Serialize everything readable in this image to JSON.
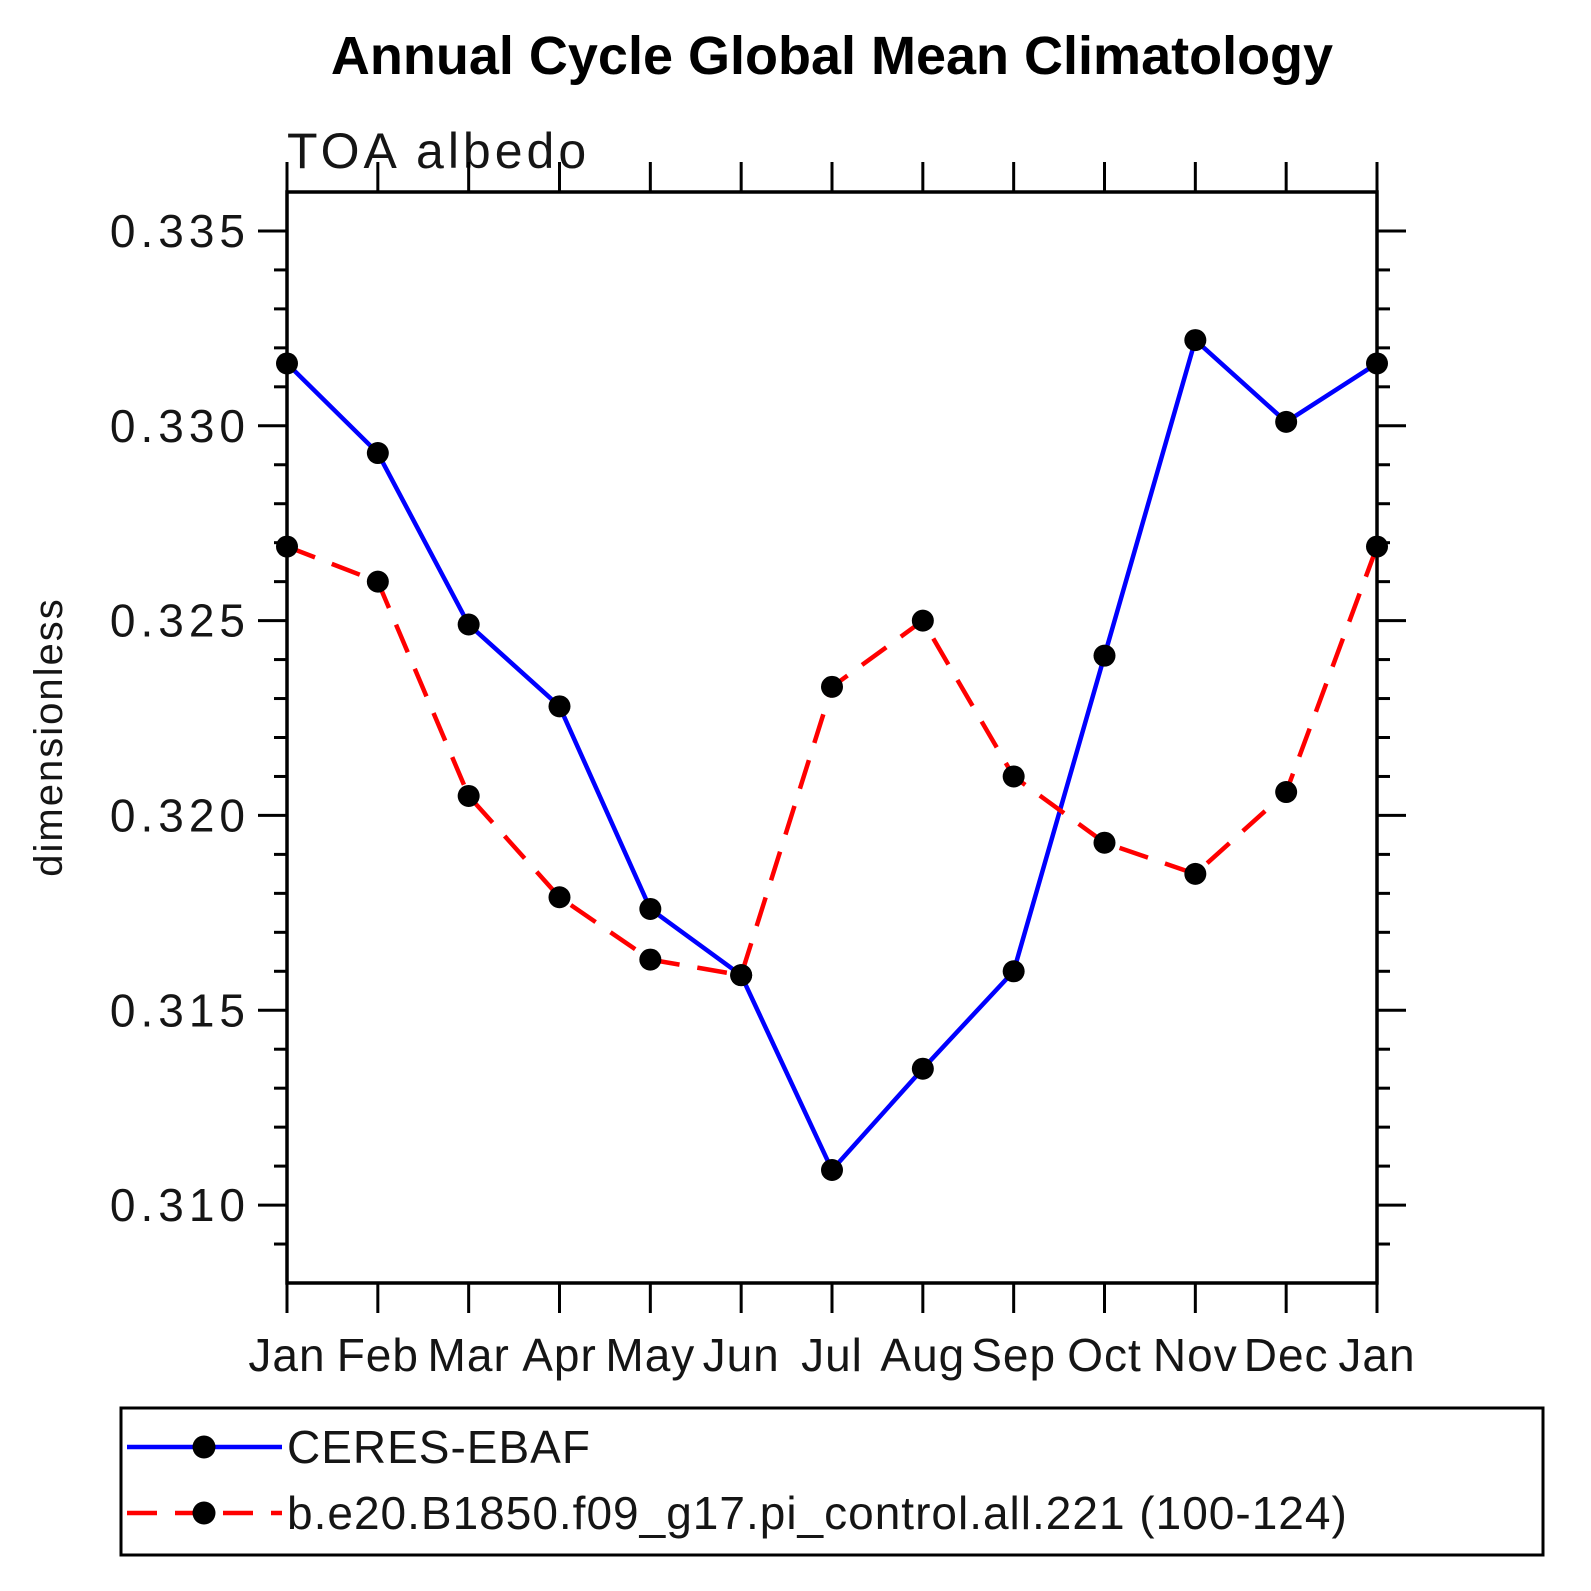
{
  "title": "Annual Cycle Global Mean Climatology",
  "chart_data": {
    "type": "line",
    "title": "Annual Cycle Global Mean Climatology",
    "subtitle": "TOA albedo",
    "ylabel": "dimensionless",
    "xlabel": "",
    "grid": false,
    "legend_position": "bottom",
    "categories": [
      "Jan",
      "Feb",
      "Mar",
      "Apr",
      "May",
      "Jun",
      "Jul",
      "Aug",
      "Sep",
      "Oct",
      "Nov",
      "Dec",
      "Jan"
    ],
    "ylim": [
      0.308,
      0.336
    ],
    "y_major_ticks": [
      0.31,
      0.315,
      0.32,
      0.325,
      0.33,
      0.335
    ],
    "y_tick_labels": [
      "0.310",
      "0.315",
      "0.320",
      "0.325",
      "0.330",
      "0.335"
    ],
    "y_minor_step": 0.001,
    "marker_color": "#000000",
    "axis_color": "#000000",
    "series": [
      {
        "name": "CERES-EBAF",
        "color": "#0000ff",
        "style": "solid",
        "values": [
          0.3316,
          0.3293,
          0.3249,
          0.3228,
          0.3176,
          0.3159,
          0.3109,
          0.3135,
          0.316,
          0.3241,
          0.3322,
          0.3301,
          0.3316
        ]
      },
      {
        "name": "b.e20.B1850.f09_g17.pi_control.all.221 (100-124)",
        "color": "#ff0000",
        "style": "dashed",
        "values": [
          0.3269,
          0.326,
          0.3205,
          0.3179,
          0.3163,
          0.3159,
          0.3233,
          0.325,
          0.321,
          0.3193,
          0.3185,
          0.3206,
          0.3269
        ]
      }
    ]
  }
}
